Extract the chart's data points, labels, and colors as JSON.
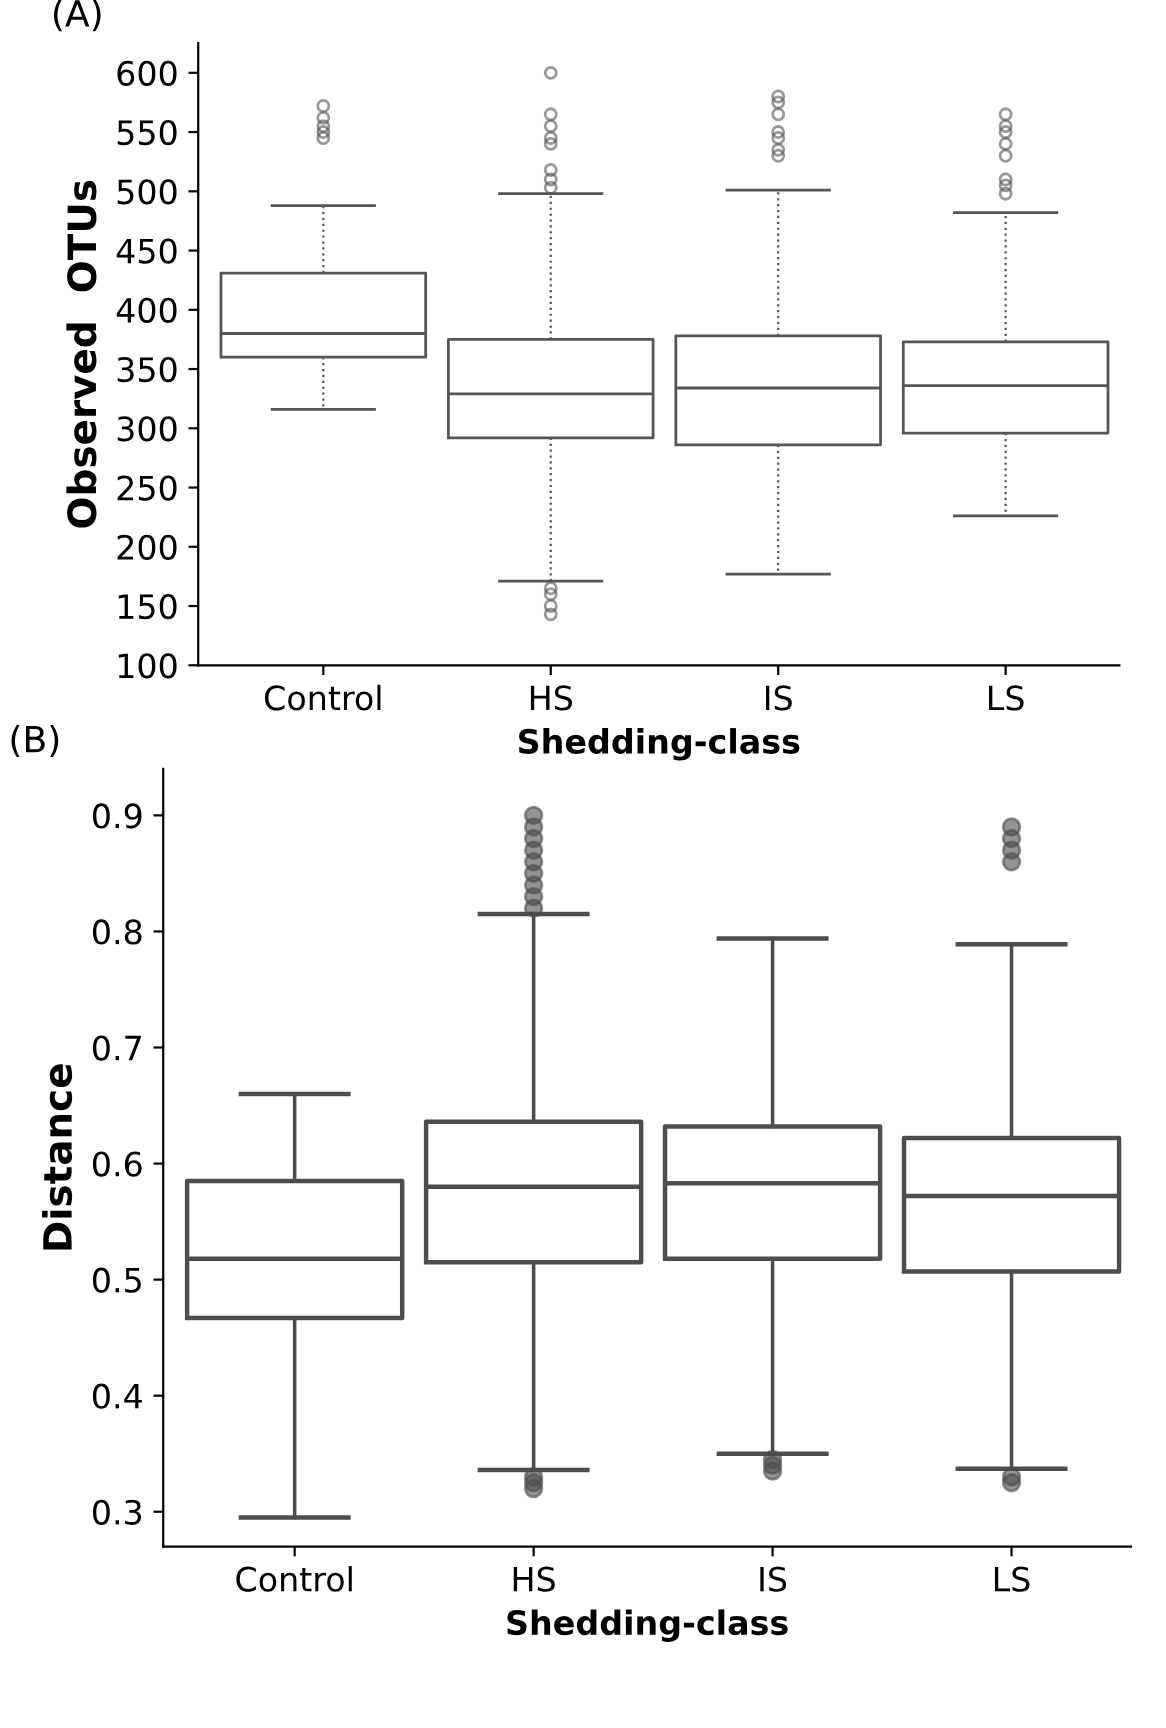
{
  "chart_data": [
    {
      "type": "box",
      "title": "(A)",
      "xlabel": "Shedding-class",
      "ylabel": "Observed  OTUs",
      "categories": [
        "Control",
        "HS",
        "IS",
        "LS"
      ],
      "ylim": [
        100,
        625
      ],
      "yticks": [
        100,
        150,
        200,
        250,
        300,
        350,
        400,
        450,
        500,
        550,
        600
      ],
      "grid": false,
      "line_style": "dotted",
      "series": [
        {
          "color": "#555555",
          "boxes": [
            {
              "low": 316,
              "q1": 360,
              "median": 380,
              "q3": 431,
              "high": 488,
              "outliers": [
                545,
                550,
                555,
                562,
                572
              ]
            },
            {
              "low": 171,
              "q1": 292,
              "median": 329,
              "q3": 375,
              "high": 498,
              "outliers": [
                503,
                510,
                518,
                540,
                545,
                555,
                565,
                600,
                165,
                160,
                150,
                143
              ]
            },
            {
              "low": 177,
              "q1": 286,
              "median": 334,
              "q3": 378,
              "high": 501,
              "outliers": [
                530,
                535,
                545,
                550,
                565,
                575,
                580
              ]
            },
            {
              "low": 226,
              "q1": 296,
              "median": 336,
              "q3": 373,
              "high": 482,
              "outliers": [
                498,
                505,
                510,
                530,
                540,
                550,
                555,
                565
              ]
            }
          ]
        }
      ]
    },
    {
      "type": "box",
      "title": "(B)",
      "xlabel": "Shedding-class",
      "ylabel": "Distance",
      "categories": [
        "Control",
        "HS",
        "IS",
        "LS"
      ],
      "ylim": [
        0.27,
        0.94
      ],
      "yticks": [
        0.3,
        0.4,
        0.5,
        0.6,
        0.7,
        0.8,
        0.9
      ],
      "grid": false,
      "line_style": "solid",
      "series": [
        {
          "color": "#4d4d4d",
          "boxes": [
            {
              "low": 0.295,
              "q1": 0.467,
              "median": 0.518,
              "q3": 0.585,
              "high": 0.66
            },
            {
              "low": 0.336,
              "q1": 0.515,
              "median": 0.58,
              "q3": 0.636,
              "high": 0.815,
              "outliers": [
                0.82,
                0.83,
                0.84,
                0.85,
                0.86,
                0.87,
                0.88,
                0.89,
                0.9,
                0.33,
                0.325,
                0.32
              ]
            },
            {
              "low": 0.35,
              "q1": 0.518,
              "median": 0.583,
              "q3": 0.632,
              "high": 0.794,
              "outliers": [
                0.345,
                0.34,
                0.335
              ]
            },
            {
              "low": 0.337,
              "q1": 0.507,
              "median": 0.572,
              "q3": 0.622,
              "high": 0.789,
              "outliers": [
                0.86,
                0.87,
                0.88,
                0.89,
                0.33,
                0.325
              ]
            }
          ]
        }
      ]
    }
  ]
}
